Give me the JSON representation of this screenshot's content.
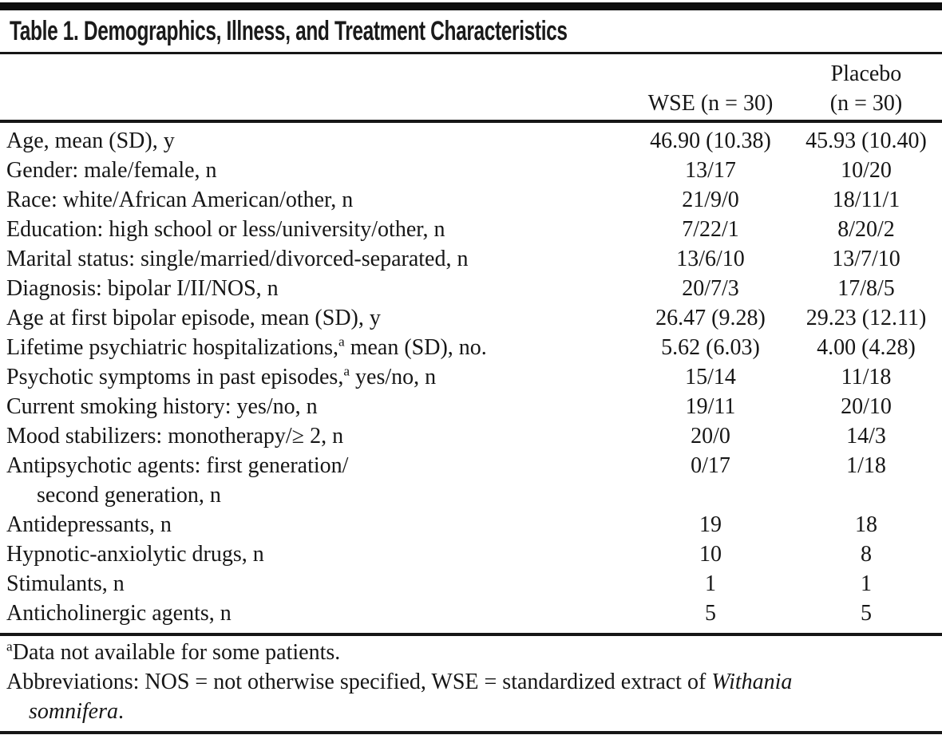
{
  "table": {
    "title": "Table 1. Demographics, Illness, and Treatment Characteristics",
    "columns": {
      "wse": "WSE (n = 30)",
      "placebo_line1": "Placebo",
      "placebo_line2": "(n = 30)"
    },
    "rows": [
      {
        "label": "Age, mean (SD), y",
        "wse": "46.90 (10.38)",
        "placebo": "45.93 (10.40)"
      },
      {
        "label": "Gender: male/female, n",
        "wse": "13/17",
        "placebo": "10/20"
      },
      {
        "label": "Race: white/African American/other, n",
        "wse": "21/9/0",
        "placebo": "18/11/1"
      },
      {
        "label": "Education: high school or less/university/other, n",
        "wse": "7/22/1",
        "placebo": "8/20/2"
      },
      {
        "label": "Marital status: single/married/divorced-separated, n",
        "wse": "13/6/10",
        "placebo": "13/7/10"
      },
      {
        "label": "Diagnosis: bipolar I/II/NOS, n",
        "wse": "20/7/3",
        "placebo": "17/8/5"
      },
      {
        "label": "Age at first bipolar episode, mean (SD), y",
        "wse": "26.47 (9.28)",
        "placebo": "29.23 (12.11)"
      },
      {
        "label": "Lifetime psychiatric hospitalizations,",
        "sup": "a",
        "label2": " mean (SD), no.",
        "wse": "5.62 (6.03)",
        "placebo": "4.00 (4.28)"
      },
      {
        "label": "Psychotic symptoms in past episodes,",
        "sup": "a",
        "label2": " yes/no, n",
        "wse": "15/14",
        "placebo": "11/18"
      },
      {
        "label": "Current smoking history: yes/no, n",
        "wse": "19/11",
        "placebo": "20/10"
      },
      {
        "label": "Mood stabilizers: monotherapy/≥ 2, n",
        "wse": "20/0",
        "placebo": "14/3"
      },
      {
        "label": "Antipsychotic agents: first generation/",
        "label_line2": "second generation, n",
        "wse": "0/17",
        "placebo": "1/18"
      },
      {
        "label": "Antidepressants, n",
        "wse": "19",
        "placebo": "18"
      },
      {
        "label": "Hypnotic-anxiolytic drugs, n",
        "wse": "10",
        "placebo": "8"
      },
      {
        "label": "Stimulants, n",
        "wse": "1",
        "placebo": "1"
      },
      {
        "label": "Anticholinergic agents, n",
        "wse": "5",
        "placebo": "5"
      }
    ]
  },
  "footnotes": {
    "a_sup": "a",
    "a_text": "Data not available for some patients.",
    "abbrev_text": "Abbreviations: NOS = not otherwise specified, WSE = standardized extract of ",
    "abbrev_italic_line1": "Withania",
    "abbrev_italic_line2": "somnifera",
    "abbrev_suffix": "."
  }
}
